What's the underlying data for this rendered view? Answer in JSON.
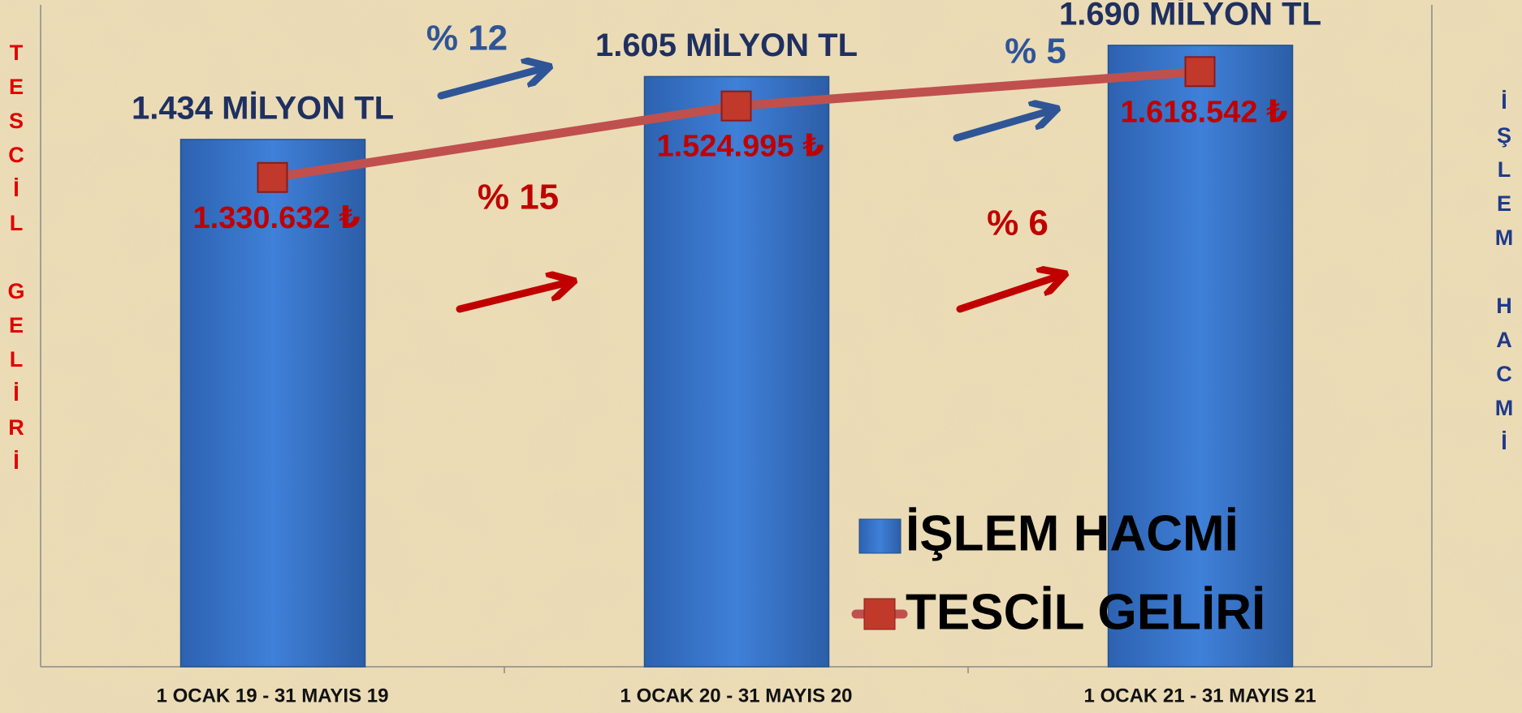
{
  "chart_data": {
    "type": "bar_line",
    "ylabel": "TESCİL GELİRİ",
    "y2label": "İŞLEM HACMİ",
    "categories": [
      "1 OCAK 19 - 31 MAYIS 19",
      "1 OCAK 20 - 31 MAYIS 20",
      "1 OCAK 21 -  31 MAYIS 21"
    ],
    "series": [
      {
        "name": "İŞLEM HACMİ",
        "type": "bar",
        "axis": "y2",
        "color": "#3a78d0",
        "values": [
          1434,
          1605,
          1690
        ],
        "value_labels": [
          "1.434 MİLYON TL",
          "1.605 MİLYON TL",
          "1.690 MİLYON TL"
        ]
      },
      {
        "name": "TESCİL GELİRİ",
        "type": "line",
        "axis": "y",
        "color": "#c0504d",
        "values": [
          1330632,
          1524995,
          1618542
        ],
        "value_labels": [
          "1.330.632 ₺",
          "1.524.995 ₺",
          "1.618.542 ₺"
        ]
      }
    ],
    "ylim": [
      0,
      1800000
    ],
    "y2lim": [
      0,
      1800
    ],
    "annotations": [
      {
        "text": "% 12",
        "color": "#2f5597"
      },
      {
        "text": "% 15",
        "color": "#c00000"
      },
      {
        "text": "% 5",
        "color": "#2f5597"
      },
      {
        "text": "% 6",
        "color": "#c00000"
      }
    ]
  }
}
